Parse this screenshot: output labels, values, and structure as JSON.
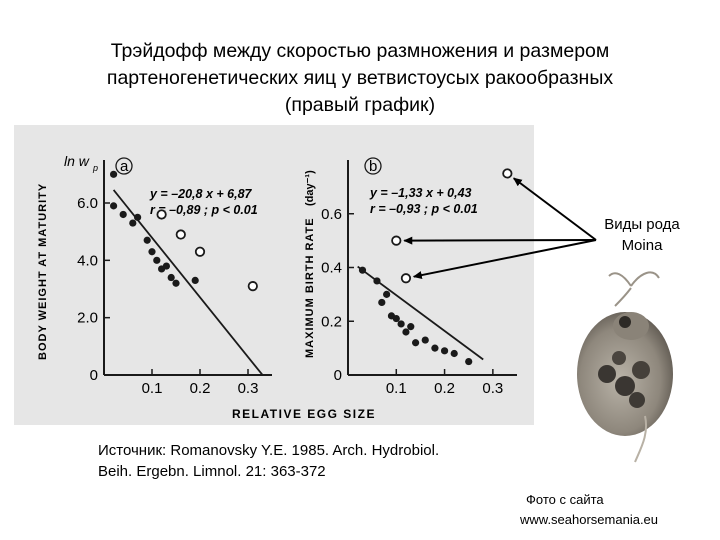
{
  "slide": {
    "title_lines": [
      "Трэйдофф между скоростью размножения и размером",
      "партеногенетических яиц у ветвистоусых ракообразных",
      "(правый график)"
    ],
    "moina_label_lines": [
      "Виды рода",
      "Moina"
    ],
    "source_lines": [
      "Источник: Romanovsky Y.E. 1985. Arch. Hydrobiol.",
      "Beih. Ergebn. Limnol. 21: 363-372"
    ],
    "photo_credit_lines": [
      "Фото с сайта",
      "www.seahorsemania.eu"
    ],
    "colors": {
      "background": "#ffffff",
      "scan": "#e6e6e6",
      "ink": "#1a1a1a"
    },
    "photo_icon": "moina-photo-icon"
  },
  "chart_data": [
    {
      "type": "scatter",
      "panel_label": "a",
      "xlabel": "RELATIVE EGG SIZE",
      "ylabel": "BODY WEIGHT AT MATURITY",
      "corner_label": "ln w",
      "corner_label_sub": "p",
      "equation": "y = –20,8 x + 6,87",
      "stats": "r = –0,89 ; p < 0.01",
      "xlim": [
        0,
        0.35
      ],
      "ylim": [
        0,
        7.5
      ],
      "xticks": [
        0.1,
        0.2,
        0.3
      ],
      "xtick_labels": [
        "0.1",
        "0.2",
        "0.3"
      ],
      "yticks": [
        0,
        2.0,
        4.0,
        6.0
      ],
      "ytick_labels": [
        "0",
        "2.0",
        "4.0",
        "6.0"
      ],
      "origin_label": "0",
      "regression": {
        "slope": -20.8,
        "intercept": 6.87,
        "x_range": [
          0.02,
          0.33
        ]
      },
      "filled_points": [
        {
          "x": 0.02,
          "y": 7.0
        },
        {
          "x": 0.02,
          "y": 5.9
        },
        {
          "x": 0.04,
          "y": 5.6
        },
        {
          "x": 0.06,
          "y": 5.3
        },
        {
          "x": 0.07,
          "y": 5.5
        },
        {
          "x": 0.09,
          "y": 4.7
        },
        {
          "x": 0.1,
          "y": 4.3
        },
        {
          "x": 0.11,
          "y": 4.0
        },
        {
          "x": 0.12,
          "y": 3.7
        },
        {
          "x": 0.13,
          "y": 3.8
        },
        {
          "x": 0.14,
          "y": 3.4
        },
        {
          "x": 0.15,
          "y": 3.2
        },
        {
          "x": 0.19,
          "y": 3.3
        }
      ],
      "open_points": [
        {
          "x": 0.12,
          "y": 5.6
        },
        {
          "x": 0.16,
          "y": 4.9
        },
        {
          "x": 0.2,
          "y": 4.3
        },
        {
          "x": 0.31,
          "y": 3.1
        }
      ]
    },
    {
      "type": "scatter",
      "panel_label": "b",
      "xlabel": "RELATIVE EGG SIZE",
      "ylabel": "MAXIMUM BIRTH RATE",
      "ylabel_unit": "(day⁻¹)",
      "equation": "y = –1,33 x + 0,43",
      "stats": "r = –0,93 ; p < 0.01",
      "xlim": [
        0,
        0.35
      ],
      "ylim": [
        0,
        0.8
      ],
      "xticks": [
        0.1,
        0.2,
        0.3
      ],
      "xtick_labels": [
        "0.1",
        "0.2",
        "0.3"
      ],
      "yticks": [
        0,
        0.2,
        0.4,
        0.6
      ],
      "ytick_labels": [
        "0",
        "0.2",
        "0.4",
        "0.6"
      ],
      "origin_label": "0",
      "regression": {
        "slope": -1.33,
        "intercept": 0.43,
        "x_range": [
          0.02,
          0.28
        ]
      },
      "filled_points": [
        {
          "x": 0.03,
          "y": 0.39
        },
        {
          "x": 0.06,
          "y": 0.35
        },
        {
          "x": 0.07,
          "y": 0.27
        },
        {
          "x": 0.08,
          "y": 0.3
        },
        {
          "x": 0.09,
          "y": 0.22
        },
        {
          "x": 0.1,
          "y": 0.21
        },
        {
          "x": 0.11,
          "y": 0.19
        },
        {
          "x": 0.12,
          "y": 0.16
        },
        {
          "x": 0.13,
          "y": 0.18
        },
        {
          "x": 0.14,
          "y": 0.12
        },
        {
          "x": 0.16,
          "y": 0.13
        },
        {
          "x": 0.18,
          "y": 0.1
        },
        {
          "x": 0.2,
          "y": 0.09
        },
        {
          "x": 0.22,
          "y": 0.08
        },
        {
          "x": 0.25,
          "y": 0.05
        }
      ],
      "open_points": [
        {
          "x": 0.1,
          "y": 0.5
        },
        {
          "x": 0.12,
          "y": 0.36
        },
        {
          "x": 0.33,
          "y": 0.75
        }
      ]
    }
  ]
}
